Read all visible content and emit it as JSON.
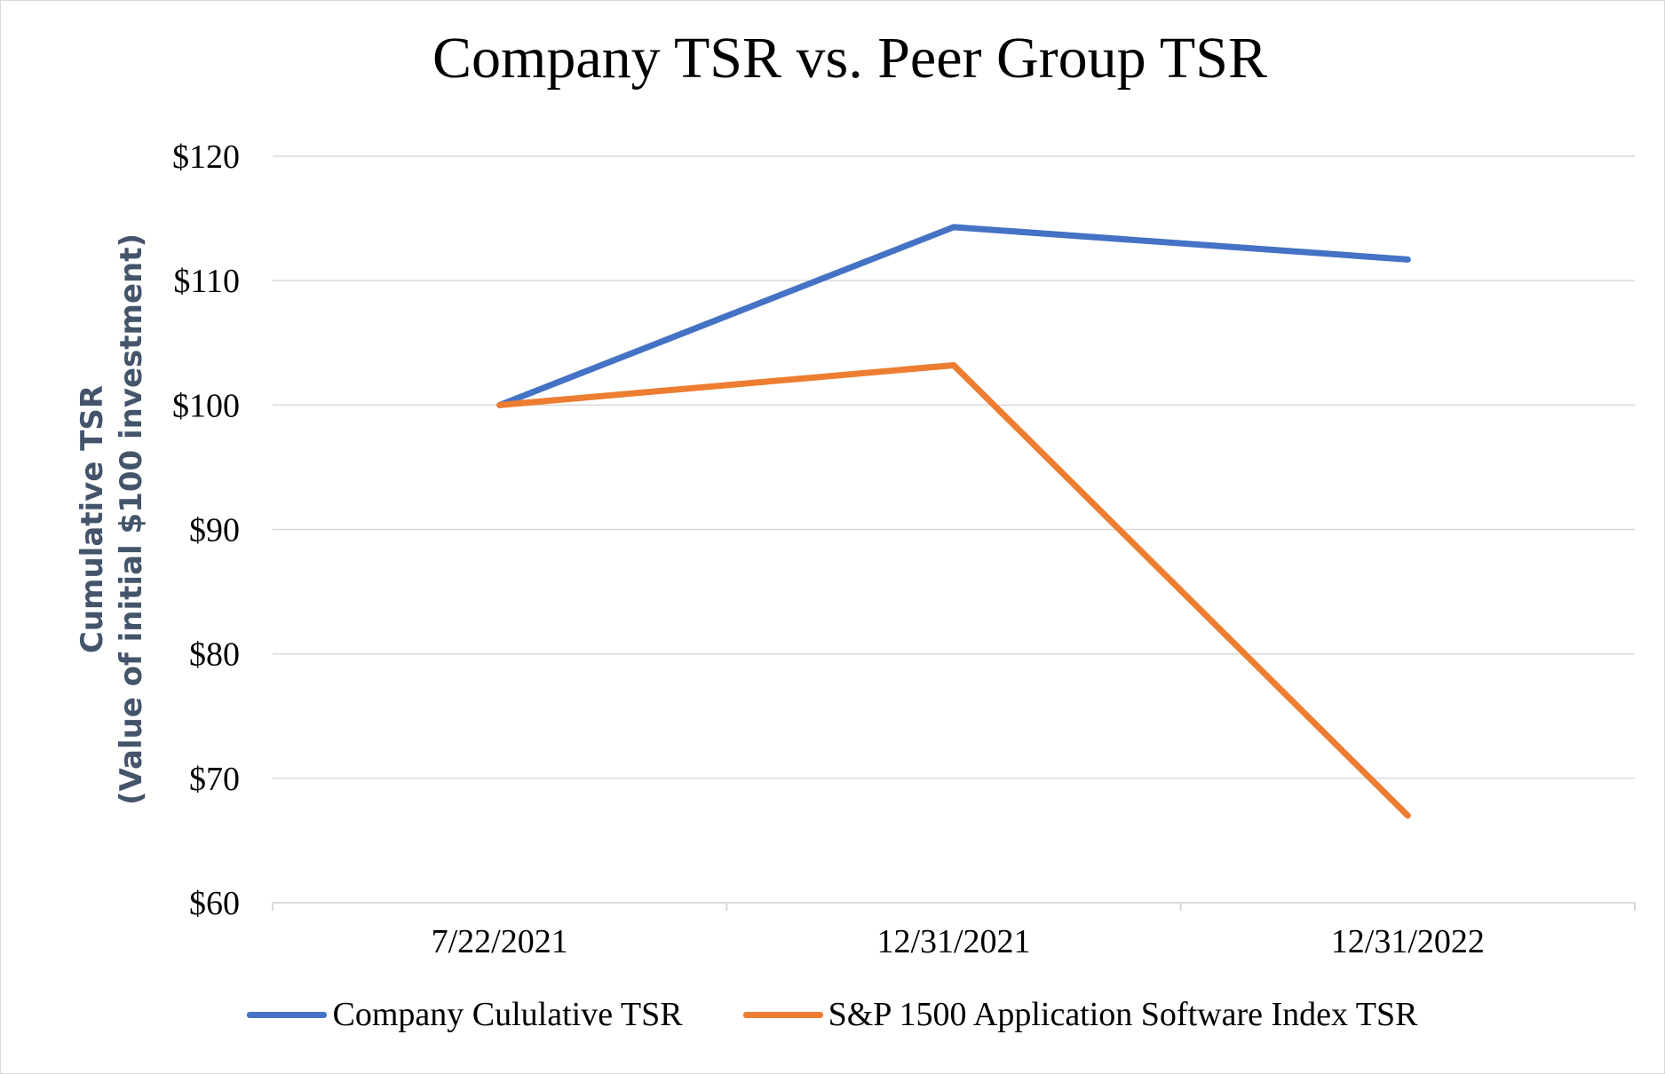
{
  "chart_data": {
    "type": "line",
    "title": "Company TSR vs. Peer Group TSR",
    "xlabel": "",
    "ylabel": [
      "Cumulative TSR",
      "(Value of initial $100 investment)"
    ],
    "categories": [
      "7/22/2021",
      "12/31/2021",
      "12/31/2022"
    ],
    "ylim": [
      60,
      120
    ],
    "yticks": [
      60,
      70,
      80,
      90,
      100,
      110,
      120
    ],
    "ytick_labels": [
      "$60",
      "$70",
      "$80",
      "$90",
      "$100",
      "$110",
      "$120"
    ],
    "grid": true,
    "legend_position": "bottom",
    "series": [
      {
        "name": "Company Cululative TSR",
        "color": "#4472c4",
        "values": [
          100,
          114.3,
          111.7
        ]
      },
      {
        "name": "S&P 1500 Application Software Index TSR",
        "color": "#ed7d31",
        "values": [
          100,
          103.2,
          67
        ]
      }
    ]
  }
}
